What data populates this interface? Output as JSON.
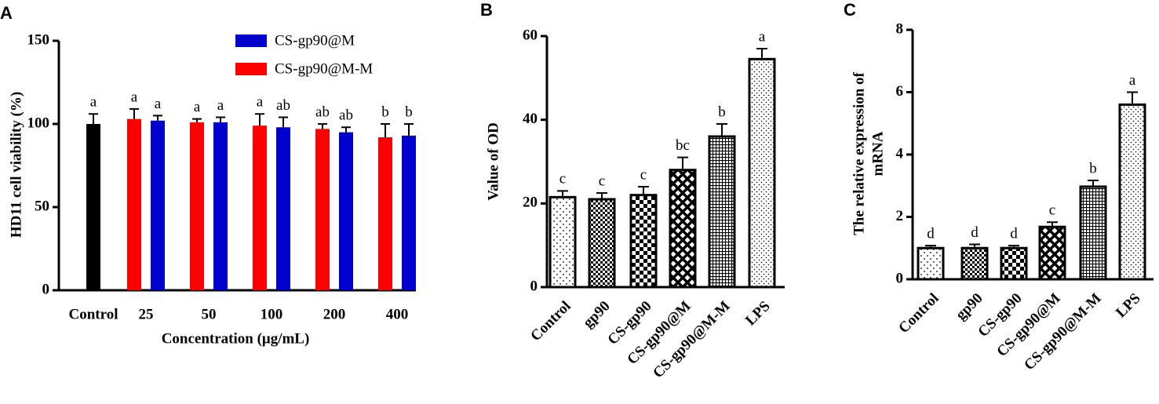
{
  "chart_data": [
    {
      "type": "grouped_bar",
      "panel": "A",
      "ylabel": "HD11 cell viability (%)",
      "xlabel": "Concentration (μg/mL)",
      "categories": [
        "Control",
        "25",
        "50",
        "100",
        "200",
        "400"
      ],
      "control_value": 100,
      "control_error": 6,
      "control_letter": "a",
      "control_color": "#000000",
      "series": [
        {
          "name": "CS-gp90@M",
          "color": "#0000cc",
          "values": [
            null,
            102,
            101,
            98,
            95,
            93
          ],
          "errors": [
            null,
            3,
            3,
            6,
            3,
            7
          ],
          "letters": [
            null,
            "a",
            "a",
            "ab",
            "ab",
            "b"
          ]
        },
        {
          "name": "CS-gp90@M-M",
          "color": "#ff0000",
          "values": [
            null,
            103,
            101,
            99,
            97,
            92
          ],
          "errors": [
            null,
            6,
            2,
            7,
            3,
            8
          ],
          "letters": [
            null,
            "a",
            "a",
            "a",
            "ab",
            "b"
          ]
        }
      ],
      "ylim": [
        0,
        150
      ],
      "yticks": [
        0,
        50,
        100,
        150
      ]
    },
    {
      "type": "bar",
      "panel": "B",
      "ylabel": "Value of OD",
      "categories": [
        "Control",
        "gp90",
        "CS-gp90",
        "CS-gp90@M",
        "CS-gp90@M-M",
        "LPS"
      ],
      "values": [
        21.5,
        21,
        22,
        28,
        36,
        54.5
      ],
      "errors": [
        1.5,
        1.5,
        2,
        3,
        3,
        2.5
      ],
      "letters": [
        "c",
        "c",
        "c",
        "bc",
        "b",
        "a"
      ],
      "ylim": [
        0,
        60
      ],
      "yticks": [
        0,
        20,
        40,
        60
      ]
    },
    {
      "type": "bar",
      "panel": "C",
      "ylabel": [
        "The relative expression of",
        "mRNA"
      ],
      "categories": [
        "Control",
        "gp90",
        "CS-gp90",
        "CS-gp90@M",
        "CS-gp90@M-M",
        "LPS"
      ],
      "values": [
        1.0,
        1.0,
        1.0,
        1.68,
        2.97,
        5.6
      ],
      "errors": [
        0.08,
        0.12,
        0.08,
        0.15,
        0.2,
        0.4
      ],
      "letters": [
        "d",
        "d",
        "d",
        "c",
        "b",
        "a"
      ],
      "ylim": [
        0,
        8
      ],
      "yticks": [
        0,
        2,
        4,
        6,
        8
      ]
    }
  ]
}
